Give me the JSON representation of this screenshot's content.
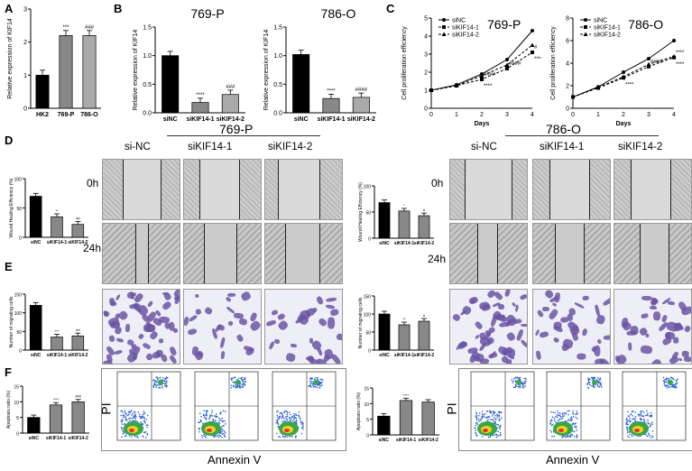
{
  "panels": {
    "A": "A",
    "B": "B",
    "C": "C",
    "D": "D",
    "E": "E",
    "F": "F"
  },
  "colors": {
    "black": "#000000",
    "darkgray": "#555555",
    "midgray": "#888888",
    "lightgray": "#aaaaaa",
    "stain": "#6b55a4"
  },
  "panelA": {
    "ylabel": "Relative expression of KIF14",
    "categories": [
      "HK2",
      "769-P",
      "786-O"
    ],
    "values": [
      1.0,
      2.2,
      2.2
    ],
    "ylim": [
      0,
      3
    ],
    "yticks": [
      "0",
      "1",
      "2",
      "3"
    ],
    "sig": [
      "",
      "***",
      "###"
    ]
  },
  "panelB": [
    {
      "title": "769-P",
      "ylabel": "Relative expression of KIF14",
      "categories": [
        "siNC",
        "siKIF14-1",
        "siKIF14-2"
      ],
      "values": [
        1.0,
        0.18,
        0.32
      ],
      "ylim": [
        0,
        1.5
      ],
      "yticks": [
        "0.0",
        "0.5",
        "1.0",
        "1.5"
      ],
      "sig": [
        "",
        "****",
        "###"
      ]
    },
    {
      "title": "786-O",
      "ylabel": "Relative expression of KIF14",
      "categories": [
        "siNC",
        "siKIF14-1",
        "siKIF14-2"
      ],
      "values": [
        1.02,
        0.25,
        0.27
      ],
      "ylim": [
        0,
        1.5
      ],
      "yticks": [
        "0.0",
        "0.5",
        "1.0",
        "1.5"
      ],
      "sig": [
        "",
        "****",
        "####"
      ]
    }
  ],
  "panelC": [
    {
      "title": "769-P",
      "ylabel": "Cell proliferation efficiency",
      "xlabel": "Days",
      "x": [
        "0",
        "1",
        "2",
        "3",
        "4"
      ],
      "ylim": [
        0,
        5
      ],
      "yticks": [
        "0",
        "1",
        "2",
        "3",
        "4",
        "5"
      ],
      "series": [
        {
          "name": "siNC",
          "values": [
            1.0,
            1.3,
            1.9,
            2.7,
            4.3
          ]
        },
        {
          "name": "siKIF14-1",
          "values": [
            1.0,
            1.25,
            1.6,
            2.2,
            3.1
          ]
        },
        {
          "name": "siKIF14-2",
          "values": [
            1.0,
            1.25,
            1.8,
            2.4,
            3.5
          ]
        }
      ],
      "annotations": [
        "#",
        "****",
        "####",
        "****",
        "####"
      ]
    },
    {
      "title": "786-O",
      "ylabel": "Cell proliferation efficiency",
      "xlabel": "Days",
      "x": [
        "0",
        "1",
        "2",
        "3",
        "4"
      ],
      "ylim": [
        0,
        8
      ],
      "yticks": [
        "0",
        "2",
        "4",
        "6",
        "8"
      ],
      "series": [
        {
          "name": "siNC",
          "values": [
            1.0,
            1.9,
            3.2,
            4.4,
            6.0
          ]
        },
        {
          "name": "siKIF14-1",
          "values": [
            1.0,
            1.8,
            2.7,
            3.7,
            4.5
          ]
        },
        {
          "name": "siKIF14-2",
          "values": [
            1.0,
            1.85,
            2.8,
            3.9,
            4.6
          ]
        }
      ],
      "annotations": [
        "****",
        "****",
        "####",
        "****"
      ]
    }
  ],
  "conditions": [
    "si-NC",
    "siKIF14-1",
    "siKIF14-2"
  ],
  "cellLines": [
    "769-P",
    "786-O"
  ],
  "times": [
    "0h",
    "24h"
  ],
  "panelD": [
    {
      "ylabel": "Wound Healing Efficiency (%)",
      "categories": [
        "siNC",
        "siKIF14-1",
        "siKIF14-2"
      ],
      "values": [
        70,
        35,
        22
      ],
      "ylim": [
        0,
        100
      ],
      "yticks": [
        "0",
        "50",
        "100"
      ],
      "sig": [
        "",
        "**",
        "##"
      ]
    },
    {
      "ylabel": "Wound Healing Efficiency (%)",
      "categories": [
        "siNC",
        "siKIF14-1",
        "siKIF14-2"
      ],
      "values": [
        68,
        52,
        43
      ],
      "ylim": [
        0,
        100
      ],
      "yticks": [
        "0",
        "50",
        "100"
      ],
      "sig": [
        "",
        "*",
        "#"
      ]
    }
  ],
  "panelE": [
    {
      "ylabel": "Number of migrating cells",
      "categories": [
        "siNC",
        "siKIF14-1",
        "siKIF14-2"
      ],
      "values": [
        120,
        35,
        38
      ],
      "ylim": [
        0,
        150
      ],
      "yticks": [
        "0",
        "50",
        "100",
        "150"
      ],
      "sig": [
        "",
        "***",
        "##"
      ]
    },
    {
      "ylabel": "Number of migrating cells",
      "categories": [
        "siNC",
        "siKIF14-1",
        "siKIF14-2"
      ],
      "values": [
        100,
        70,
        80
      ],
      "ylim": [
        0,
        150
      ],
      "yticks": [
        "0",
        "50",
        "100",
        "150"
      ],
      "sig": [
        "",
        "**",
        "#"
      ]
    }
  ],
  "panelF": [
    {
      "ylabel": "Apoptosis ratio (%)",
      "categories": [
        "siNC",
        "siKIF14-1",
        "siKIF14-2"
      ],
      "values": [
        5,
        9,
        10
      ],
      "ylim": [
        0,
        15
      ],
      "yticks": [
        "0",
        "5",
        "10",
        "15"
      ],
      "sig": [
        "",
        "****",
        "###"
      ]
    },
    {
      "ylabel": "Apoptosis ratio (%)",
      "categories": [
        "siNC",
        "siKIF14-1",
        "siKIF14-2"
      ],
      "values": [
        6,
        11,
        10.5
      ],
      "ylim": [
        0,
        15
      ],
      "yticks": [
        "0",
        "5",
        "10",
        "15"
      ],
      "sig": [
        "",
        "****",
        ""
      ]
    }
  ],
  "flow": {
    "xlabel": "Annexin V",
    "ylabel": "PI"
  },
  "chart_data": [
    {
      "type": "bar",
      "id": "A",
      "categories": [
        "HK2",
        "769-P",
        "786-O"
      ],
      "values": [
        1.0,
        2.2,
        2.2
      ],
      "ylabel": "Relative expression of KIF14",
      "ylim": [
        0,
        3
      ]
    },
    {
      "type": "bar",
      "id": "B-769-P",
      "categories": [
        "siNC",
        "siKIF14-1",
        "siKIF14-2"
      ],
      "values": [
        1.0,
        0.18,
        0.32
      ],
      "ylim": [
        0,
        1.5
      ]
    },
    {
      "type": "bar",
      "id": "B-786-O",
      "categories": [
        "siNC",
        "siKIF14-1",
        "siKIF14-2"
      ],
      "values": [
        1.02,
        0.25,
        0.27
      ],
      "ylim": [
        0,
        1.5
      ]
    },
    {
      "type": "line",
      "id": "C-769-P",
      "x": [
        0,
        1,
        2,
        3,
        4
      ],
      "series": [
        {
          "name": "siNC",
          "values": [
            1.0,
            1.3,
            1.9,
            2.7,
            4.3
          ]
        },
        {
          "name": "siKIF14-1",
          "values": [
            1.0,
            1.25,
            1.6,
            2.2,
            3.1
          ]
        },
        {
          "name": "siKIF14-2",
          "values": [
            1.0,
            1.25,
            1.8,
            2.4,
            3.5
          ]
        }
      ]
    },
    {
      "type": "line",
      "id": "C-786-O",
      "x": [
        0,
        1,
        2,
        3,
        4
      ],
      "series": [
        {
          "name": "siNC",
          "values": [
            1.0,
            1.9,
            3.2,
            4.4,
            6.0
          ]
        },
        {
          "name": "siKIF14-1",
          "values": [
            1.0,
            1.8,
            2.7,
            3.7,
            4.5
          ]
        },
        {
          "name": "siKIF14-2",
          "values": [
            1.0,
            1.85,
            2.8,
            3.9,
            4.6
          ]
        }
      ]
    }
  ]
}
